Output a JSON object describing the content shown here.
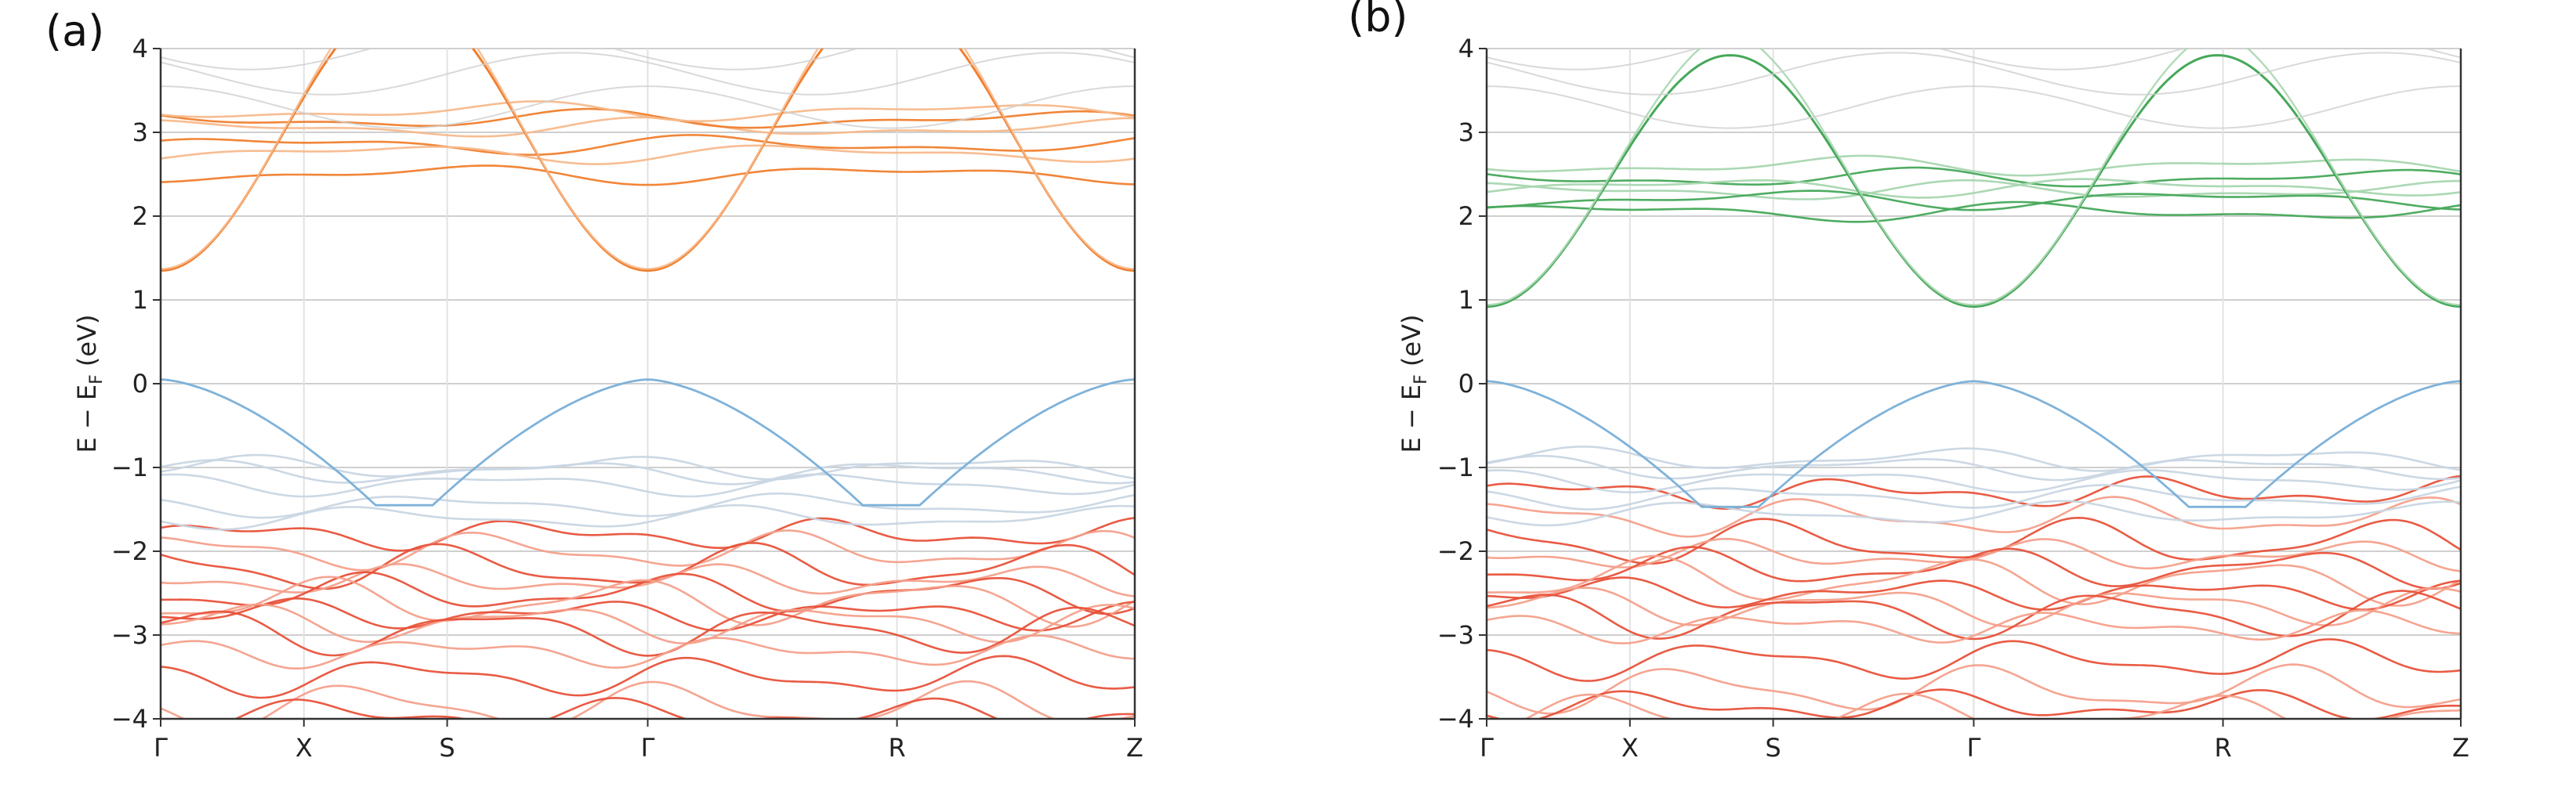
{
  "figure": {
    "panels": [
      {
        "label": "(a)"
      },
      {
        "label": "(b)"
      }
    ]
  },
  "colors": {
    "grid": "#cfcfcf",
    "vline": "#e2e2e2",
    "axis": "#333333",
    "valence": "#7fb2d9",
    "valence_light": "#c9d6e3",
    "lower_red": "#e8523a",
    "lower_red_light": "#f4a08b",
    "conduction_a": "#f07f2e",
    "conduction_a_light": "#f7b98c",
    "conduction_b": "#46a85a",
    "conduction_b_light": "#a8d6b0",
    "faint_gray": "#d0d0d0"
  },
  "chart_data": [
    {
      "type": "line",
      "panel": "(a)",
      "ylabel_main": "E − E",
      "ylabel_sub": "F",
      "ylabel_unit": " (eV)",
      "ylim": [
        -4,
        4
      ],
      "yticks": [
        -4,
        -3,
        -2,
        -1,
        0,
        1,
        2,
        3,
        4
      ],
      "ytick_labels": [
        "−4",
        "−3",
        "−2",
        "−1",
        "0",
        "1",
        "2",
        "3",
        "4"
      ],
      "xlim": [
        0,
        3.4
      ],
      "kpoints": [
        {
          "label": "Γ",
          "x": 0
        },
        {
          "label": "X",
          "x": 0.5
        },
        {
          "label": "S",
          "x": 1.0
        },
        {
          "label": "Γ",
          "x": 1.7
        },
        {
          "label": "R",
          "x": 2.57
        },
        {
          "label": "Z",
          "x": 3.4
        }
      ],
      "grid": "horizontal",
      "conduction_key": "conduction_a",
      "conduction_light_key": "conduction_a_light",
      "conduction_min": 1.35,
      "conduction_gamma_top": 4.6,
      "conduction_flat": [
        2.85,
        3.05,
        3.15,
        3.25,
        2.5,
        2.75
      ],
      "valence_max": 0.05,
      "valence_flat": [
        -1.0,
        -1.05,
        -1.2,
        -1.45,
        -1.6
      ],
      "red_bands": [
        -1.8,
        -2.0,
        -2.2,
        -2.35,
        -2.5,
        -2.6,
        -2.75,
        -2.85,
        -2.95,
        -3.2,
        -3.5,
        -3.85,
        -3.95
      ]
    },
    {
      "type": "line",
      "panel": "(b)",
      "ylabel_main": "E − E",
      "ylabel_sub": "F",
      "ylabel_unit": " (eV)",
      "ylim": [
        -4,
        4
      ],
      "yticks": [
        -4,
        -3,
        -2,
        -1,
        0,
        1,
        2,
        3,
        4
      ],
      "ytick_labels": [
        "−4",
        "−3",
        "−2",
        "−1",
        "0",
        "1",
        "2",
        "3",
        "4"
      ],
      "xlim": [
        0,
        3.4
      ],
      "kpoints": [
        {
          "label": "Γ",
          "x": 0
        },
        {
          "label": "X",
          "x": 0.5
        },
        {
          "label": "S",
          "x": 1.0
        },
        {
          "label": "Γ",
          "x": 1.7
        },
        {
          "label": "R",
          "x": 2.57
        },
        {
          "label": "Z",
          "x": 3.4
        }
      ],
      "grid": "horizontal",
      "conduction_key": "conduction_b",
      "conduction_light_key": "conduction_b_light",
      "conduction_min": 0.92,
      "conduction_gamma_top": 3.92,
      "conduction_flat": [
        2.05,
        2.3,
        2.45,
        2.6,
        2.2,
        2.35
      ],
      "valence_max": 0.03,
      "valence_flat": [
        -0.9,
        -1.0,
        -1.15,
        -1.35,
        -1.55
      ],
      "red_bands": [
        -1.3,
        -1.6,
        -1.9,
        -2.05,
        -2.2,
        -2.35,
        -2.5,
        -2.65,
        -2.75,
        -2.9,
        -3.3,
        -3.65,
        -3.85,
        -3.95
      ]
    }
  ]
}
